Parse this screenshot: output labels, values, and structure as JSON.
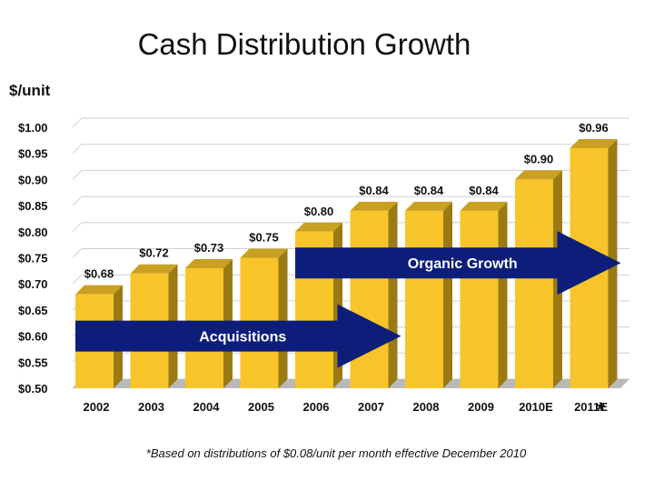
{
  "title": "Cash Distribution Growth",
  "colors": {
    "bar_front": "#F7C52A",
    "bar_side": "#9A7A12",
    "bar_top": "#C9A020",
    "floor": "#B9B9B9",
    "wall_grid": "#CFCFCF",
    "arrow": "#0D1E7A"
  },
  "chart_data": {
    "type": "bar",
    "title": "",
    "ylabel": "$/unit",
    "xlabel": "",
    "categories": [
      "2002",
      "2003",
      "2004",
      "2005",
      "2006",
      "2007",
      "2008",
      "2009",
      "2010E",
      "2011E"
    ],
    "values": [
      0.68,
      0.72,
      0.73,
      0.75,
      0.8,
      0.84,
      0.84,
      0.84,
      0.9,
      0.96
    ],
    "data_labels": [
      "$0.68",
      "$0.72",
      "$0.73",
      "$0.75",
      "$0.80",
      "$0.84",
      "$0.84",
      "$0.84",
      "$0.90",
      "$0.96"
    ],
    "ylim": [
      0.5,
      1.0
    ],
    "yticks": [
      1.0,
      0.95,
      0.9,
      0.85,
      0.8,
      0.75,
      0.7,
      0.65,
      0.6,
      0.55,
      0.5
    ],
    "ytick_labels": [
      "$1.00",
      "$0.95",
      "$0.90",
      "$0.85",
      "$0.80",
      "$0.75",
      "$0.70",
      "$0.65",
      "$0.60",
      "$0.55",
      "$0.50"
    ],
    "grid": true,
    "legend": "none",
    "annotations": [
      {
        "text": "Acquisitions",
        "kind": "arrow",
        "from_category": "2002",
        "to_category": "2007",
        "level": 0.6
      },
      {
        "text": "Organic Growth",
        "kind": "arrow",
        "from_category": "2006",
        "to_category": "2011E",
        "level": 0.74
      }
    ],
    "footnote_marker": "*",
    "footnote": "*Based on distributions of $0.08/unit per month effective December 2010"
  }
}
